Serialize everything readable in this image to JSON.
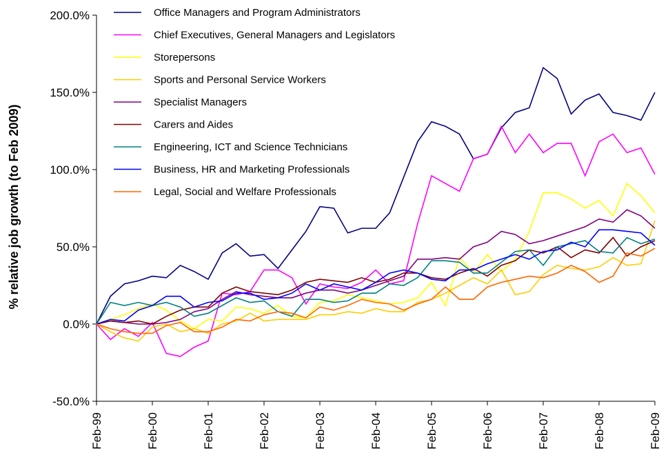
{
  "chart_data": {
    "type": "line",
    "y_label": "% relative job growth (to Feb 2009)",
    "categories": [
      "Feb-99",
      null,
      null,
      null,
      "Feb-00",
      null,
      null,
      null,
      "Feb-01",
      null,
      null,
      null,
      "Feb-02",
      null,
      null,
      null,
      "Feb-03",
      null,
      null,
      null,
      "Feb-04",
      null,
      null,
      null,
      "Feb-05",
      null,
      null,
      null,
      "Feb-06",
      null,
      null,
      null,
      "Feb-07",
      null,
      null,
      null,
      "Feb-08",
      null,
      null,
      null,
      "Feb-09"
    ],
    "ylim": [
      -50,
      200
    ],
    "yticks": [
      {
        "value": -50,
        "label": "-50.0%"
      },
      {
        "value": 0,
        "label": "0.0%"
      },
      {
        "value": 50,
        "label": "50.0%"
      },
      {
        "value": 100,
        "label": "100.0%"
      },
      {
        "value": 150,
        "label": "150.0%"
      },
      {
        "value": 200,
        "label": "200.0%"
      }
    ],
    "legend": "upper left",
    "series": [
      {
        "name": "Office Managers and Program Administrators",
        "color": "#000080",
        "values": [
          0,
          18,
          26,
          28,
          31,
          30,
          38,
          34,
          29,
          46,
          52,
          44,
          45,
          36,
          48,
          60,
          76,
          75,
          59,
          62,
          62,
          72,
          95,
          118,
          131,
          128,
          123,
          107,
          110,
          127,
          137,
          140,
          166,
          159,
          136,
          145,
          149,
          137,
          135,
          132,
          150
        ]
      },
      {
        "name": "Chief Executives, General Managers and Legislators",
        "color": "#ff00ff",
        "values": [
          0,
          -10,
          -3,
          -8,
          1,
          -19,
          -21,
          -15,
          -11,
          20,
          19,
          21,
          35,
          35,
          30,
          13,
          26,
          24,
          23,
          27,
          35,
          26,
          28,
          65,
          96,
          91,
          86,
          107,
          110,
          128,
          111,
          123,
          111,
          117,
          117,
          96,
          118,
          123,
          111,
          114,
          97
        ]
      },
      {
        "name": "Storepersons",
        "color": "#ffff00",
        "values": [
          0,
          3,
          6,
          10,
          13,
          9,
          2,
          -3,
          3,
          2,
          11,
          10,
          7,
          12,
          5,
          4,
          14,
          15,
          19,
          17,
          15,
          13,
          14,
          17,
          27,
          12,
          43,
          33,
          45,
          34,
          42,
          60,
          85,
          85,
          81,
          75,
          80,
          70,
          91,
          83,
          72
        ]
      },
      {
        "name": "Sports and Personal Service Workers",
        "color": "#ffcc00",
        "values": [
          0,
          -5,
          -9,
          -11,
          -2,
          0,
          -5,
          -3,
          -6,
          0,
          2,
          7,
          2,
          3,
          3,
          3,
          6,
          6,
          8,
          7,
          10,
          8,
          8,
          14,
          16,
          20,
          25,
          30,
          26,
          35,
          19,
          21,
          32,
          38,
          36,
          35,
          37,
          43,
          38,
          39,
          67
        ]
      },
      {
        "name": "Specialist Managers",
        "color": "#800080",
        "values": [
          0,
          2,
          1,
          0,
          0,
          1,
          3,
          8,
          10,
          16,
          21,
          19,
          18,
          17,
          17,
          20,
          22,
          22,
          20,
          22,
          25,
          28,
          31,
          42,
          42,
          43,
          42,
          50,
          53,
          60,
          58,
          52,
          54,
          57,
          60,
          63,
          68,
          66,
          74,
          70,
          62
        ]
      },
      {
        "name": "Carers and Aides",
        "color": "#800000",
        "values": [
          0,
          2,
          1,
          2,
          0,
          5,
          9,
          11,
          11,
          20,
          24,
          21,
          20,
          19,
          22,
          27,
          29,
          28,
          27,
          30,
          27,
          29,
          33,
          33,
          30,
          29,
          33,
          36,
          31,
          38,
          41,
          48,
          46,
          50,
          43,
          48,
          46,
          56,
          44,
          50,
          54
        ]
      },
      {
        "name": "Engineering, ICT and Science Technicians",
        "color": "#008080",
        "values": [
          0,
          14,
          12,
          14,
          12,
          14,
          11,
          5,
          7,
          12,
          17,
          14,
          15,
          8,
          5,
          16,
          16,
          14,
          15,
          20,
          20,
          26,
          25,
          30,
          41,
          41,
          40,
          33,
          33,
          40,
          47,
          48,
          38,
          50,
          52,
          54,
          47,
          46,
          56,
          52,
          55
        ]
      },
      {
        "name": "Business, HR and Marketing Professionals",
        "color": "#0000ff",
        "values": [
          0,
          3,
          2,
          9,
          12,
          18,
          18,
          11,
          14,
          15,
          20,
          20,
          16,
          17,
          20,
          26,
          22,
          26,
          24,
          22,
          27,
          33,
          35,
          33,
          29,
          28,
          35,
          35,
          39,
          42,
          45,
          42,
          47,
          48,
          53,
          50,
          61,
          61,
          60,
          59,
          51
        ]
      },
      {
        "name": "Legal, Social and Welfare Professionals",
        "color": "#ff6600",
        "values": [
          0,
          -3,
          -5,
          -6,
          -6,
          -1,
          1,
          -5,
          -5,
          -2,
          3,
          2,
          6,
          8,
          7,
          4,
          11,
          9,
          12,
          16,
          14,
          13,
          9,
          13,
          16,
          24,
          16,
          16,
          24,
          27,
          29,
          31,
          30,
          33,
          38,
          34,
          27,
          31,
          46,
          44,
          49
        ]
      }
    ]
  }
}
